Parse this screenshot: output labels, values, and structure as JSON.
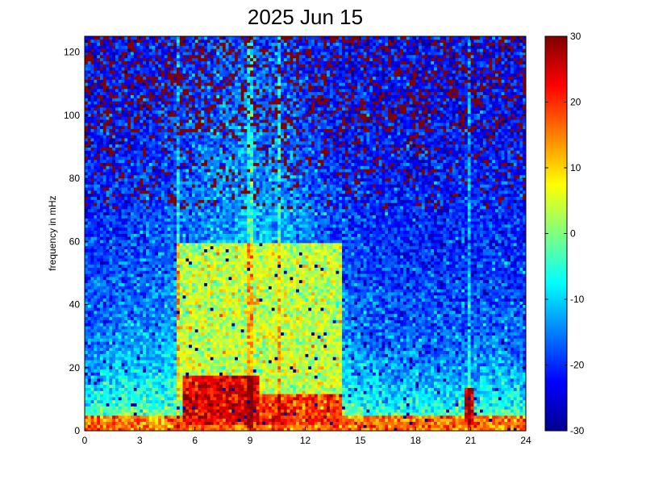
{
  "chart_data": {
    "type": "heatmap",
    "title": "2025 Jun 15",
    "xlabel": "",
    "ylabel": "frequency in mHz",
    "xlim": [
      0,
      24
    ],
    "ylim": [
      0,
      125
    ],
    "x_ticks": [
      "0",
      "3",
      "6",
      "9",
      "12",
      "15",
      "18",
      "21",
      "24"
    ],
    "y_ticks": [
      "0",
      "20",
      "40",
      "60",
      "80",
      "100",
      "120"
    ],
    "colorbar": {
      "min": -30,
      "max": 30,
      "ticks": [
        "30",
        "20",
        "10",
        "0",
        "-10",
        "-20",
        "-30"
      ],
      "colormap": "jet"
    },
    "features": [
      {
        "hours": [
          0,
          24
        ],
        "freq_mhz": [
          0,
          5
        ],
        "level": 20
      },
      {
        "hours": [
          5.3,
          9.5
        ],
        "freq_mhz": [
          2,
          18
        ],
        "level": 28
      },
      {
        "hours": [
          9.5,
          14
        ],
        "freq_mhz": [
          2,
          12
        ],
        "level": 24
      },
      {
        "hours": [
          20.6,
          21.2
        ],
        "freq_mhz": [
          2,
          14
        ],
        "level": 28
      },
      {
        "hours": [
          5,
          14
        ],
        "freq_mhz": [
          10,
          60
        ],
        "level": 8
      }
    ]
  },
  "colors": {
    "jet_low": "#00008f",
    "jet_mid": "#80ff80",
    "jet_high": "#800000"
  }
}
